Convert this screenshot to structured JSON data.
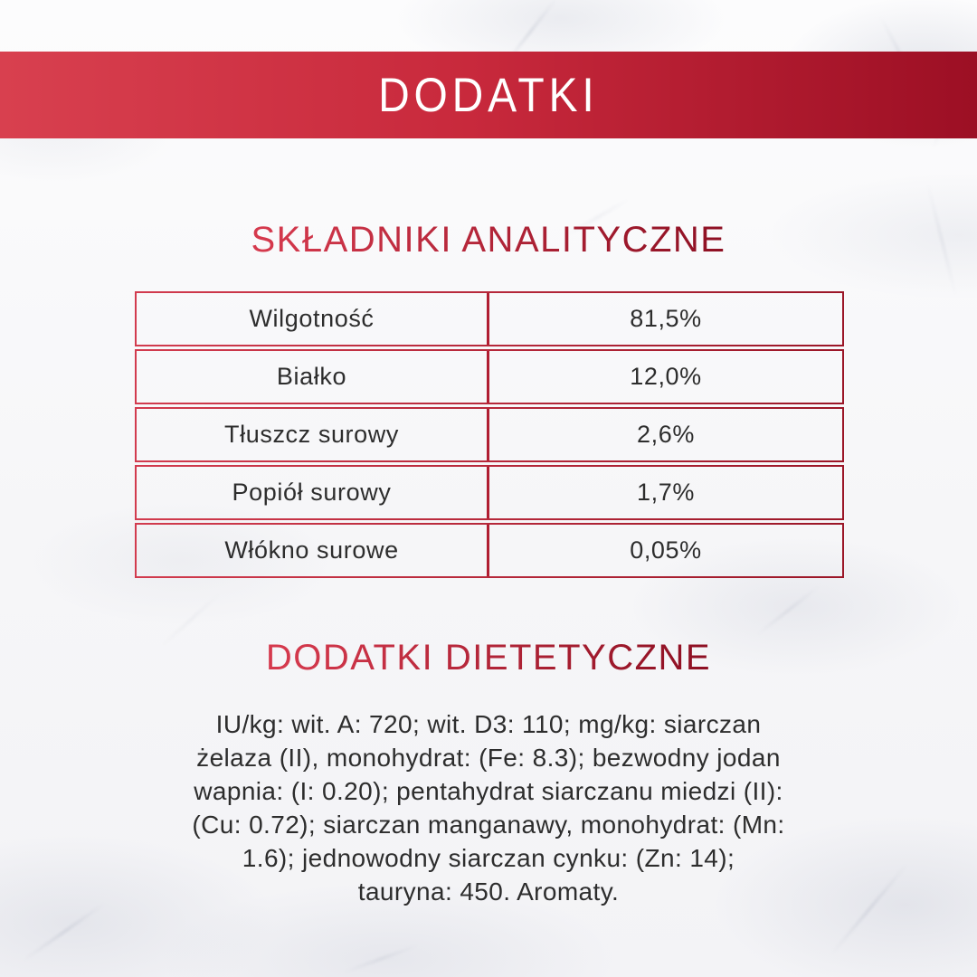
{
  "banner": {
    "title": "DODATKI"
  },
  "colors": {
    "banner_gradient_start": "#d8404f",
    "banner_gradient_end": "#9c0f24",
    "heading_gradient_start": "#d5394d",
    "heading_gradient_end": "#8e1023",
    "table_border_start": "#d23b4e",
    "table_border_end": "#9b1627",
    "body_text": "#2d2d2d",
    "banner_text": "#ffffff"
  },
  "analytical": {
    "heading": "SKŁADNIKI ANALITYCZNE",
    "rows": [
      {
        "label": "Wilgotność",
        "value": "81,5%"
      },
      {
        "label": "Białko",
        "value": "12,0%"
      },
      {
        "label": "Tłuszcz surowy",
        "value": "2,6%"
      },
      {
        "label": "Popiół surowy",
        "value": "1,7%"
      },
      {
        "label": "Włókno surowe",
        "value": "0,05%"
      }
    ]
  },
  "dietary": {
    "heading": "DODATKI DIETETYCZNE",
    "lines": [
      "IU/kg: wit. A: 720; wit. D3: 110; mg/kg: siarczan",
      "żelaza (II), monohydrat: (Fe: 8.3); bezwodny jodan",
      "wapnia: (I: 0.20); pentahydrat siarczanu miedzi (II):",
      "(Cu: 0.72); siarczan manganawy, monohydrat: (Mn:",
      "1.6); jednowodny siarczan cynku: (Zn: 14);",
      "tauryna: 450. Aromaty."
    ]
  }
}
